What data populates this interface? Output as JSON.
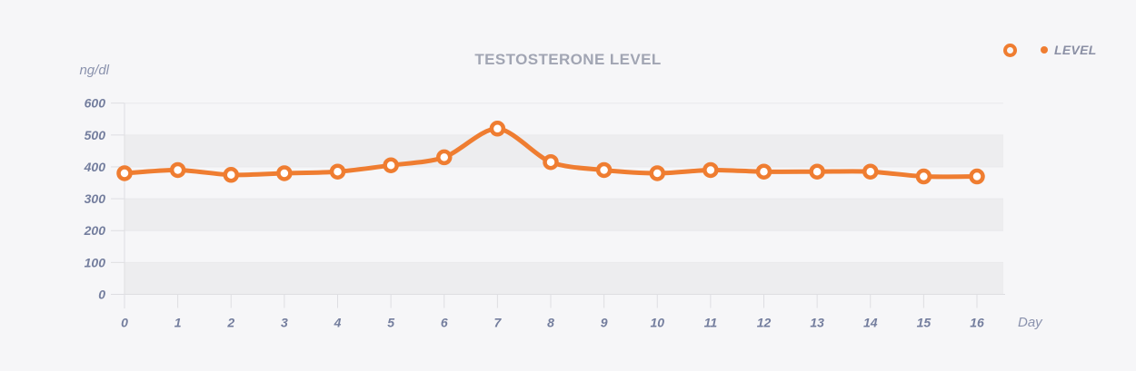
{
  "title": "TESTOSTERONE LEVEL",
  "legend": {
    "label": "LEVEL"
  },
  "axis_labels": {
    "y_unit": "ng/dl",
    "x_unit": "Day"
  },
  "colors": {
    "series": "#EF7D31",
    "marker_fill": "#FFFFFF",
    "background": "#F6F6F8",
    "band": "#EDEDEF",
    "grid": "#E9E9EC",
    "axis": "#DEDEE2",
    "tick_label": "#747E9E",
    "title": "#A1A5B3",
    "unit_label": "#8A92AD",
    "legend_label": "#8A8FA4"
  },
  "chart_data": {
    "type": "line",
    "title": "TESTOSTERONE LEVEL",
    "xlabel": "Day",
    "ylabel": "ng/dl",
    "categories": [
      "0",
      "1",
      "2",
      "3",
      "4",
      "5",
      "6",
      "7",
      "8",
      "9",
      "10",
      "11",
      "12",
      "13",
      "14",
      "15",
      "16"
    ],
    "series": [
      {
        "name": "LEVEL",
        "values": [
          380,
          390,
          375,
          380,
          385,
          405,
          430,
          520,
          415,
          390,
          380,
          390,
          385,
          385,
          385,
          370,
          370
        ]
      }
    ],
    "ylim": [
      0,
      600
    ],
    "yticks": [
      0,
      100,
      200,
      300,
      400,
      500,
      600
    ],
    "grid": "alternating horizontal bands (gray on 0-100, 200-300, 400-500)",
    "legend_position": "top-right",
    "marker": "open-circle"
  }
}
